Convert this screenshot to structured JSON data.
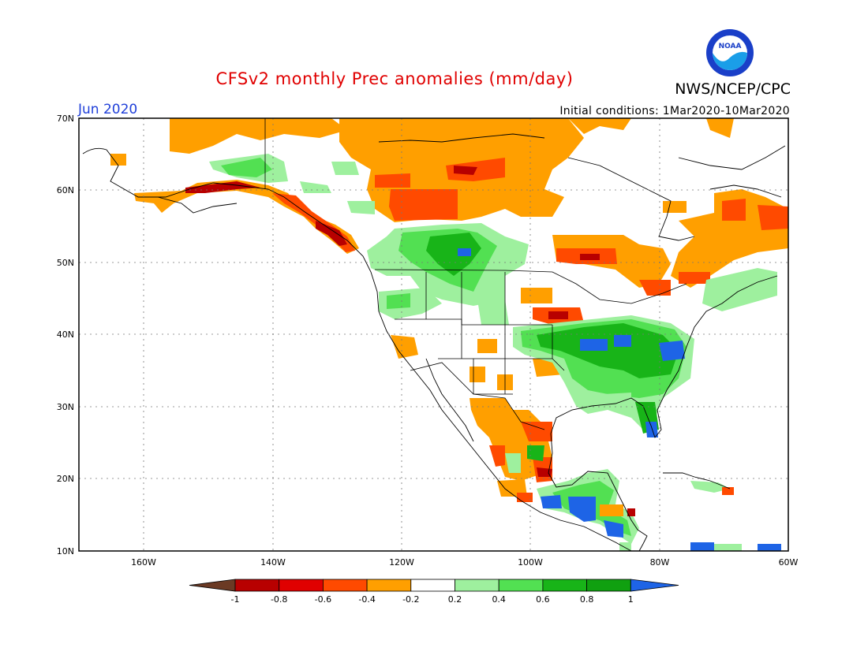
{
  "title": "CFSv2 monthly Prec anomalies (mm/day)",
  "organization": "NWS/NCEP/CPC",
  "logo_text": "NOAA",
  "valid_month": "Jun 2020",
  "initial_conditions": "Initial conditions: 1Mar2020-10Mar2020",
  "map": {
    "lat_labels": [
      "70N",
      "60N",
      "50N",
      "40N",
      "30N",
      "20N",
      "10N"
    ],
    "lon_labels": [
      "160W",
      "140W",
      "120W",
      "100W",
      "80W",
      "60W"
    ]
  },
  "colorbar": {
    "labels": [
      "-1",
      "-0.8",
      "-0.6",
      "-0.4",
      "-0.2",
      "0.2",
      "0.4",
      "0.6",
      "0.8",
      "1"
    ],
    "colors": [
      "#6b3a24",
      "#b80000",
      "#e00000",
      "#ff4a00",
      "#ff9f00",
      "#ffffff",
      "#9ef09e",
      "#52e052",
      "#18b418",
      "#10a010",
      "#1e64e6"
    ]
  },
  "anomaly_colors": {
    "strong_dry": "#b80000",
    "dry": "#ff4a00",
    "mild_dry": "#ff9f00",
    "mild_wet": "#9ef09e",
    "wet": "#52e052",
    "very_wet": "#18b418",
    "strong_wet": "#1e64e6"
  }
}
